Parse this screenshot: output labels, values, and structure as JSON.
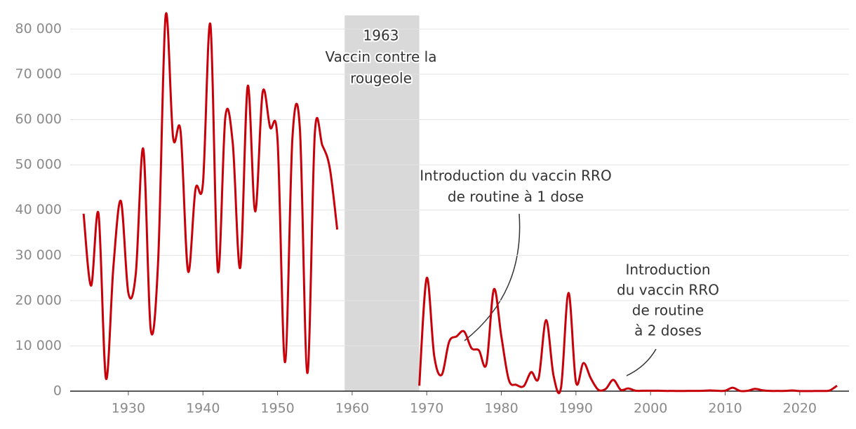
{
  "chart_data": {
    "type": "line",
    "x": [
      1924,
      1925,
      1926,
      1927,
      1928,
      1929,
      1930,
      1931,
      1932,
      1933,
      1934,
      1935,
      1936,
      1937,
      1938,
      1939,
      1940,
      1941,
      1942,
      1943,
      1944,
      1945,
      1946,
      1947,
      1948,
      1949,
      1950,
      1951,
      1952,
      1953,
      1954,
      1955,
      1956,
      1957,
      1958,
      1959,
      1960,
      1961,
      1962,
      1963,
      1964,
      1965,
      1966,
      1967,
      1968,
      1969,
      1970,
      1971,
      1972,
      1973,
      1974,
      1975,
      1976,
      1977,
      1978,
      1979,
      1980,
      1981,
      1982,
      1983,
      1984,
      1985,
      1986,
      1987,
      1988,
      1989,
      1990,
      1991,
      1992,
      1993,
      1994,
      1995,
      1996,
      1997,
      1998,
      1999,
      2000,
      2001,
      2002,
      2003,
      2004,
      2005,
      2006,
      2007,
      2008,
      2009,
      2010,
      2011,
      2012,
      2013,
      2014,
      2015,
      2016,
      2017,
      2018,
      2019,
      2020,
      2021,
      2022,
      2023,
      2024,
      2025
    ],
    "series": [
      {
        "color": "#c8000a",
        "values": [
          39200,
          23300,
          39200,
          2800,
          27600,
          42000,
          21700,
          26000,
          53500,
          13600,
          29000,
          83000,
          56000,
          57400,
          26500,
          44600,
          45900,
          81000,
          26500,
          60500,
          54700,
          27300,
          67400,
          39700,
          66000,
          58300,
          55500,
          6400,
          56100,
          57800,
          4000,
          57000,
          54300,
          49300,
          35700,
          null,
          null,
          null,
          null,
          null,
          null,
          null,
          null,
          null,
          null,
          1200,
          25000,
          7800,
          3600,
          10900,
          12100,
          13200,
          9500,
          9000,
          6000,
          22500,
          12100,
          2500,
          1400,
          1100,
          4200,
          2900,
          15700,
          3400,
          800,
          21700,
          2000,
          6200,
          2800,
          300,
          500,
          2500,
          300,
          600,
          100,
          100,
          100,
          100,
          50,
          50,
          30,
          60,
          50,
          80,
          150,
          80,
          100,
          750,
          50,
          80,
          500,
          200,
          50,
          50,
          50,
          150,
          20,
          20,
          30,
          40,
          150,
          1200
        ]
      }
    ],
    "xlim": [
      1922.2,
      2026.6
    ],
    "ylim": [
      0,
      83000
    ],
    "xticks": [
      1930,
      1940,
      1950,
      1960,
      1970,
      1980,
      1990,
      2000,
      2010,
      2020
    ],
    "yticks": [
      0,
      {
        "value": 10000,
        "label": "10 000"
      },
      {
        "value": 20000,
        "label": "20 000"
      },
      {
        "value": 30000,
        "label": "30 000"
      },
      {
        "value": 40000,
        "label": "40 000"
      },
      {
        "value": 50000,
        "label": "50 000"
      },
      {
        "value": 60000,
        "label": "60 000"
      },
      {
        "value": 70000,
        "label": "70 000"
      },
      {
        "value": 80000,
        "label": "80 000"
      }
    ],
    "grid": true,
    "shaded_span": [
      1959,
      1969
    ],
    "annotations": [
      {
        "lines": [
          "1963",
          "Vaccin contre la",
          "rougeole"
        ]
      },
      {
        "lines": [
          "Introduction du vaccin RRO",
          "de routine à 1 dose"
        ]
      },
      {
        "lines": [
          "Introduction",
          "du vaccin RRO",
          "de routine",
          "à 2 doses"
        ]
      }
    ]
  }
}
